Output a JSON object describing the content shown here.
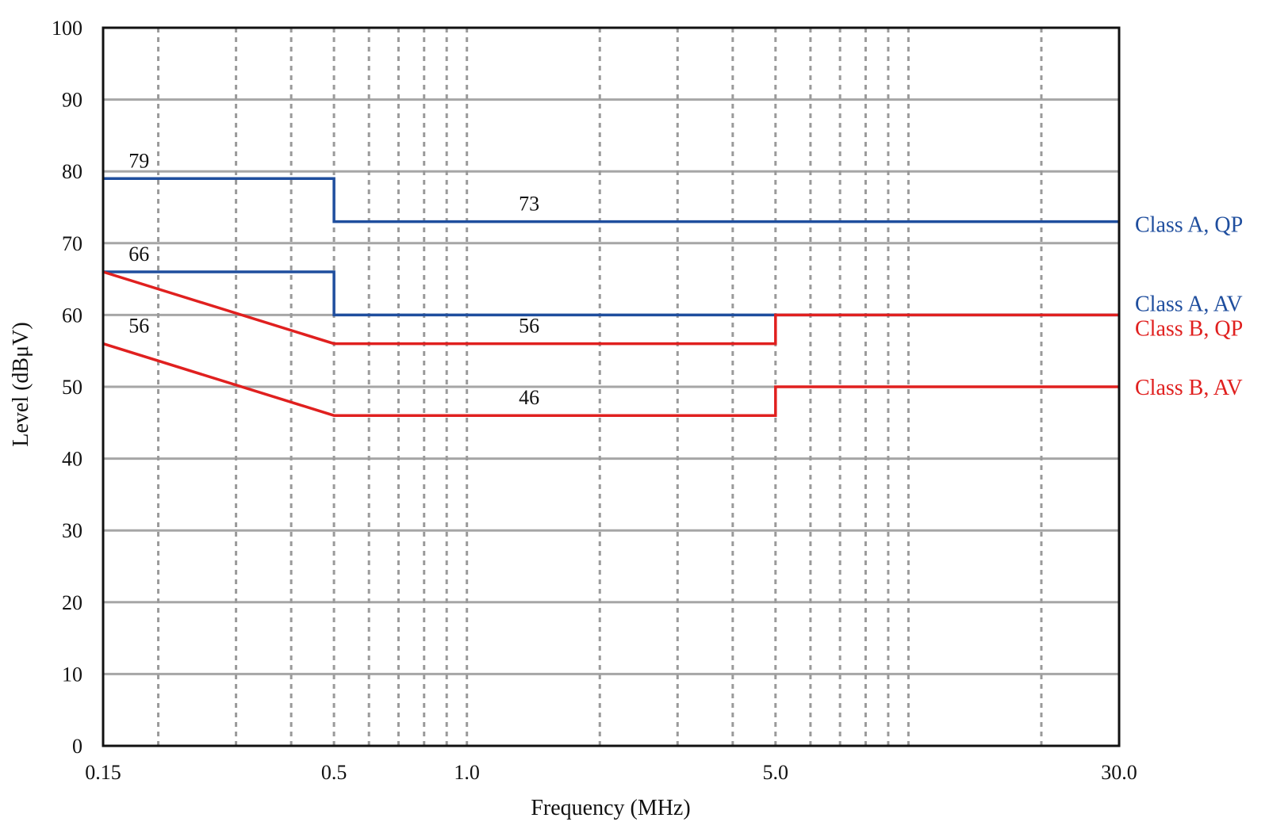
{
  "chart_data": {
    "type": "line",
    "xlabel": "Frequency (MHz)",
    "ylabel": "Level (dBμV)",
    "x_scale": "log",
    "xlim": [
      0.15,
      30.0
    ],
    "ylim": [
      0,
      100
    ],
    "x_ticks": [
      0.15,
      0.5,
      1.0,
      5.0,
      30.0
    ],
    "x_tick_labels": [
      "0.15",
      "0.5",
      "1.0",
      "5.0",
      "30.0"
    ],
    "y_ticks": [
      0,
      10,
      20,
      30,
      40,
      50,
      60,
      70,
      80,
      90,
      100
    ],
    "y_tick_labels": [
      "0",
      "10",
      "20",
      "30",
      "40",
      "50",
      "60",
      "70",
      "80",
      "90",
      "100"
    ],
    "horizontal_grid": "solid",
    "vertical_grid": "dashed",
    "vertical_grid_x": [
      0.2,
      0.3,
      0.4,
      0.5,
      0.6,
      0.7,
      0.8,
      0.9,
      1.0,
      2.0,
      3.0,
      4.0,
      5.0,
      6.0,
      7.0,
      8.0,
      9.0,
      10.0,
      20.0
    ],
    "legend_placement": "right, outside plot at line ends",
    "series": [
      {
        "name": "Class A, QP",
        "color": "#1f4e9e",
        "points": [
          [
            0.15,
            79
          ],
          [
            0.5,
            79
          ],
          [
            0.5,
            73
          ],
          [
            30.0,
            73
          ]
        ]
      },
      {
        "name": "Class A, AV",
        "color": "#1f4e9e",
        "points": [
          [
            0.15,
            66
          ],
          [
            0.5,
            66
          ],
          [
            0.5,
            60
          ],
          [
            30.0,
            60
          ]
        ]
      },
      {
        "name": "Class B, QP",
        "color": "#e0201f",
        "points": [
          [
            0.15,
            66
          ],
          [
            0.5,
            56
          ],
          [
            5.0,
            56
          ],
          [
            5.0,
            60
          ],
          [
            30.0,
            60
          ]
        ]
      },
      {
        "name": "Class B, AV",
        "color": "#e0201f",
        "points": [
          [
            0.15,
            56
          ],
          [
            0.5,
            46
          ],
          [
            5.0,
            46
          ],
          [
            5.0,
            50
          ],
          [
            30.0,
            50
          ]
        ]
      }
    ],
    "annotations": [
      {
        "text": "79",
        "x": 0.17,
        "y": 79
      },
      {
        "text": "73",
        "x": 1.3,
        "y": 73
      },
      {
        "text": "66",
        "x": 0.17,
        "y": 66
      },
      {
        "text": "56",
        "x": 0.17,
        "y": 56
      },
      {
        "text": "56",
        "x": 1.3,
        "y": 56
      },
      {
        "text": "46",
        "x": 1.3,
        "y": 46
      }
    ]
  }
}
